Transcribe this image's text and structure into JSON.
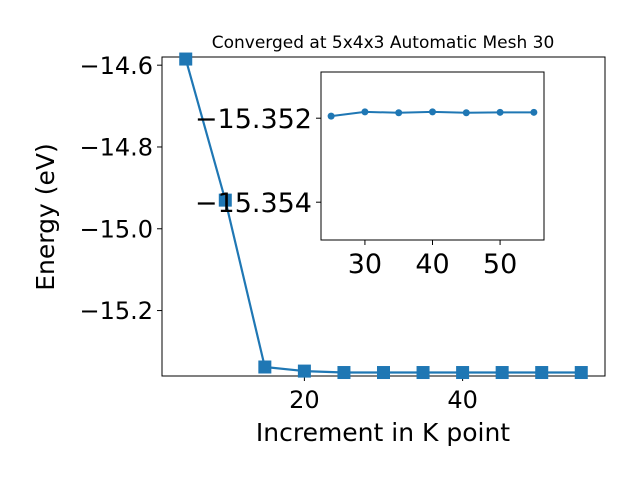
{
  "chart_data": [
    {
      "type": "line",
      "title": "Converged at 5x4x3 Automatic Mesh 30",
      "xlabel": "Increment in K point",
      "ylabel": "Energy (eV)",
      "xlim": [
        2,
        58
      ],
      "ylim": [
        -15.36,
        -14.58
      ],
      "xticks": [
        20,
        40
      ],
      "xtick_labels": [
        "20",
        "40"
      ],
      "yticks": [
        -15.2,
        -15.0,
        -14.8,
        -14.6
      ],
      "ytick_labels": [
        "−15.2",
        "−15.0",
        "−14.8",
        "−14.6"
      ],
      "grid": false,
      "series": [
        {
          "color": "#1f77b4",
          "marker": "square",
          "x": [
            5,
            10,
            15,
            20,
            25,
            30,
            35,
            40,
            45,
            50,
            55
          ],
          "y": [
            -14.585,
            -14.93,
            -15.338,
            -15.348,
            -15.3515,
            -15.3515,
            -15.3515,
            -15.3515,
            -15.3515,
            -15.3515,
            -15.3515
          ]
        }
      ]
    },
    {
      "type": "line",
      "title": "",
      "xlabel": "",
      "ylabel": "",
      "xlim": [
        23.5,
        56.5
      ],
      "ylim": [
        -15.3549,
        -15.3509
      ],
      "xticks": [
        30,
        40,
        50
      ],
      "xtick_labels": [
        "30",
        "40",
        "50"
      ],
      "yticks": [
        -15.354,
        -15.352
      ],
      "ytick_labels": [
        "−15.354",
        "−15.352"
      ],
      "grid": false,
      "series": [
        {
          "color": "#1f77b4",
          "marker": "circle",
          "x": [
            25,
            30,
            35,
            40,
            45,
            50,
            55
          ],
          "y": [
            -15.35195,
            -15.35185,
            -15.35187,
            -15.35185,
            -15.35187,
            -15.35186,
            -15.35186
          ]
        }
      ]
    }
  ]
}
